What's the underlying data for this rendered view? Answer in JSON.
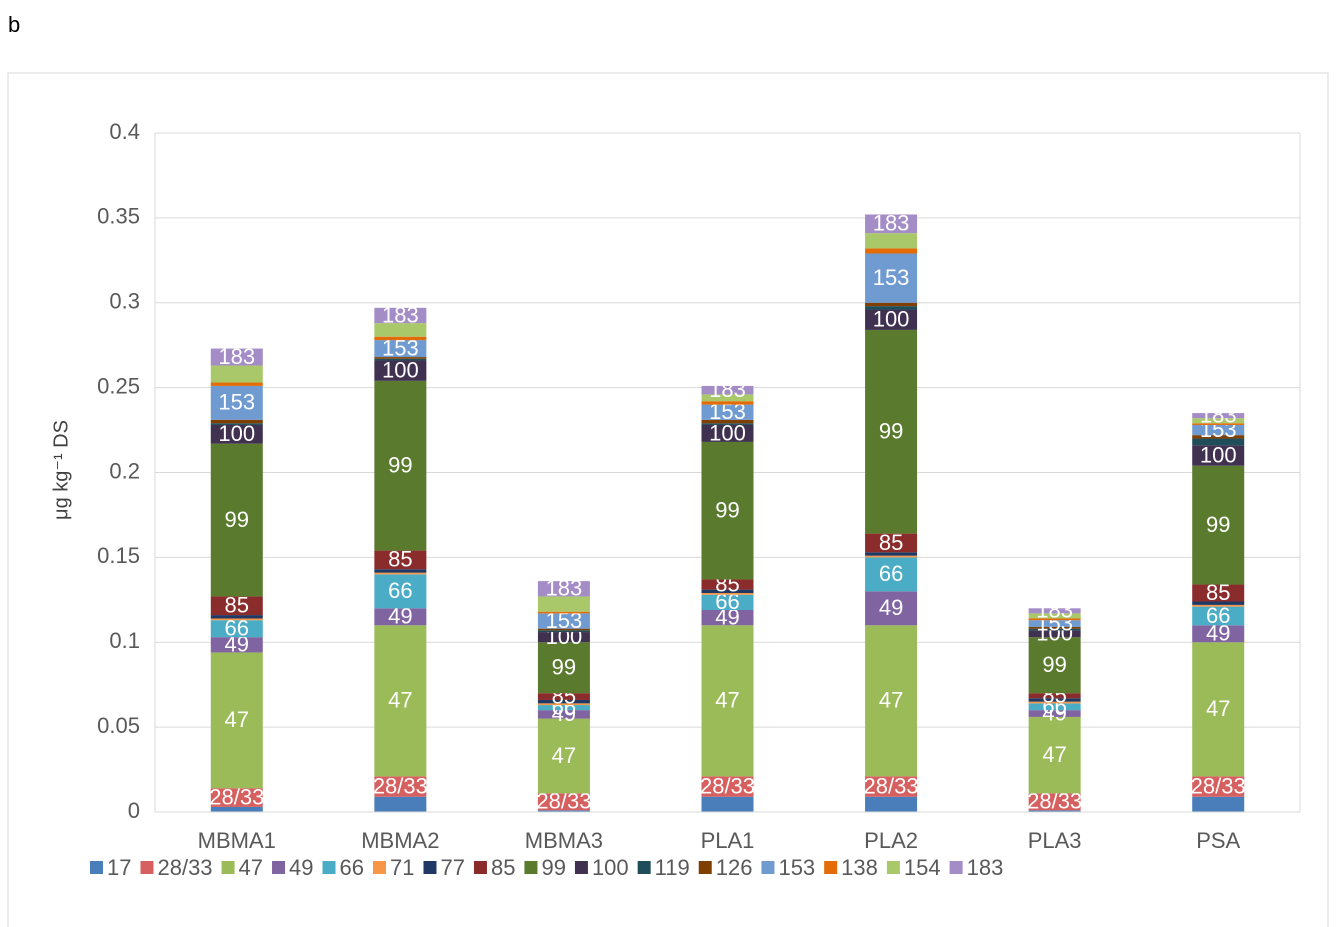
{
  "chart_data": {
    "type": "bar",
    "stacked": true,
    "panel_label": "b",
    "y_label": "μg kg⁻¹ DS",
    "categories": [
      "MBMA1",
      "MBMA2",
      "MBMA3",
      "PLA1",
      "PLA2",
      "PLA3",
      "PSA"
    ],
    "ylim": [
      0,
      0.4
    ],
    "yticks": [
      0,
      0.05,
      0.1,
      0.15,
      0.2,
      0.25,
      0.3,
      0.35,
      0.4
    ],
    "grid": true,
    "legend": "bottom",
    "series": [
      {
        "name": "17",
        "color": "#4a7ebb",
        "values": [
          0.003,
          0.009,
          0.001,
          0.009,
          0.009,
          0.001,
          0.009
        ]
      },
      {
        "name": "28/33",
        "color": "#d65f5f",
        "values": [
          0.011,
          0.012,
          0.01,
          0.012,
          0.012,
          0.01,
          0.012
        ]
      },
      {
        "name": "47",
        "color": "#9bbb59",
        "values": [
          0.08,
          0.089,
          0.044,
          0.089,
          0.089,
          0.045,
          0.079
        ]
      },
      {
        "name": "49",
        "color": "#8064a2",
        "values": [
          0.009,
          0.01,
          0.005,
          0.009,
          0.02,
          0.004,
          0.01
        ]
      },
      {
        "name": "66",
        "color": "#4bacc6",
        "values": [
          0.01,
          0.02,
          0.003,
          0.009,
          0.02,
          0.004,
          0.011
        ]
      },
      {
        "name": "71",
        "color": "#f79646",
        "values": [
          0.001,
          0.001,
          0.001,
          0.001,
          0.001,
          0.001,
          0.001
        ]
      },
      {
        "name": "77",
        "color": "#1f3864",
        "values": [
          0.002,
          0.002,
          0.002,
          0.002,
          0.002,
          0.002,
          0.002
        ]
      },
      {
        "name": "85",
        "color": "#8b2c2c",
        "values": [
          0.011,
          0.011,
          0.004,
          0.006,
          0.011,
          0.003,
          0.01
        ]
      },
      {
        "name": "99",
        "color": "#5a7a2e",
        "values": [
          0.09,
          0.1,
          0.03,
          0.081,
          0.12,
          0.033,
          0.07
        ]
      },
      {
        "name": "100",
        "color": "#403151",
        "values": [
          0.011,
          0.012,
          0.006,
          0.01,
          0.012,
          0.004,
          0.012
        ]
      },
      {
        "name": "119",
        "color": "#1f4e5a",
        "values": [
          0.001,
          0.001,
          0.001,
          0.001,
          0.002,
          0.001,
          0.004
        ]
      },
      {
        "name": "126",
        "color": "#7f3f00",
        "values": [
          0.002,
          0.001,
          0.001,
          0.002,
          0.002,
          0.001,
          0.002
        ]
      },
      {
        "name": "153",
        "color": "#6f9bd1",
        "values": [
          0.02,
          0.01,
          0.009,
          0.009,
          0.029,
          0.004,
          0.006
        ]
      },
      {
        "name": "138",
        "color": "#e36c09",
        "values": [
          0.002,
          0.002,
          0.001,
          0.002,
          0.003,
          0.001,
          0.001
        ]
      },
      {
        "name": "154",
        "color": "#a9c86a",
        "values": [
          0.01,
          0.008,
          0.009,
          0.004,
          0.009,
          0.003,
          0.003
        ]
      },
      {
        "name": "183",
        "color": "#a48cc6",
        "values": [
          0.01,
          0.009,
          0.009,
          0.005,
          0.011,
          0.003,
          0.003
        ]
      }
    ]
  }
}
